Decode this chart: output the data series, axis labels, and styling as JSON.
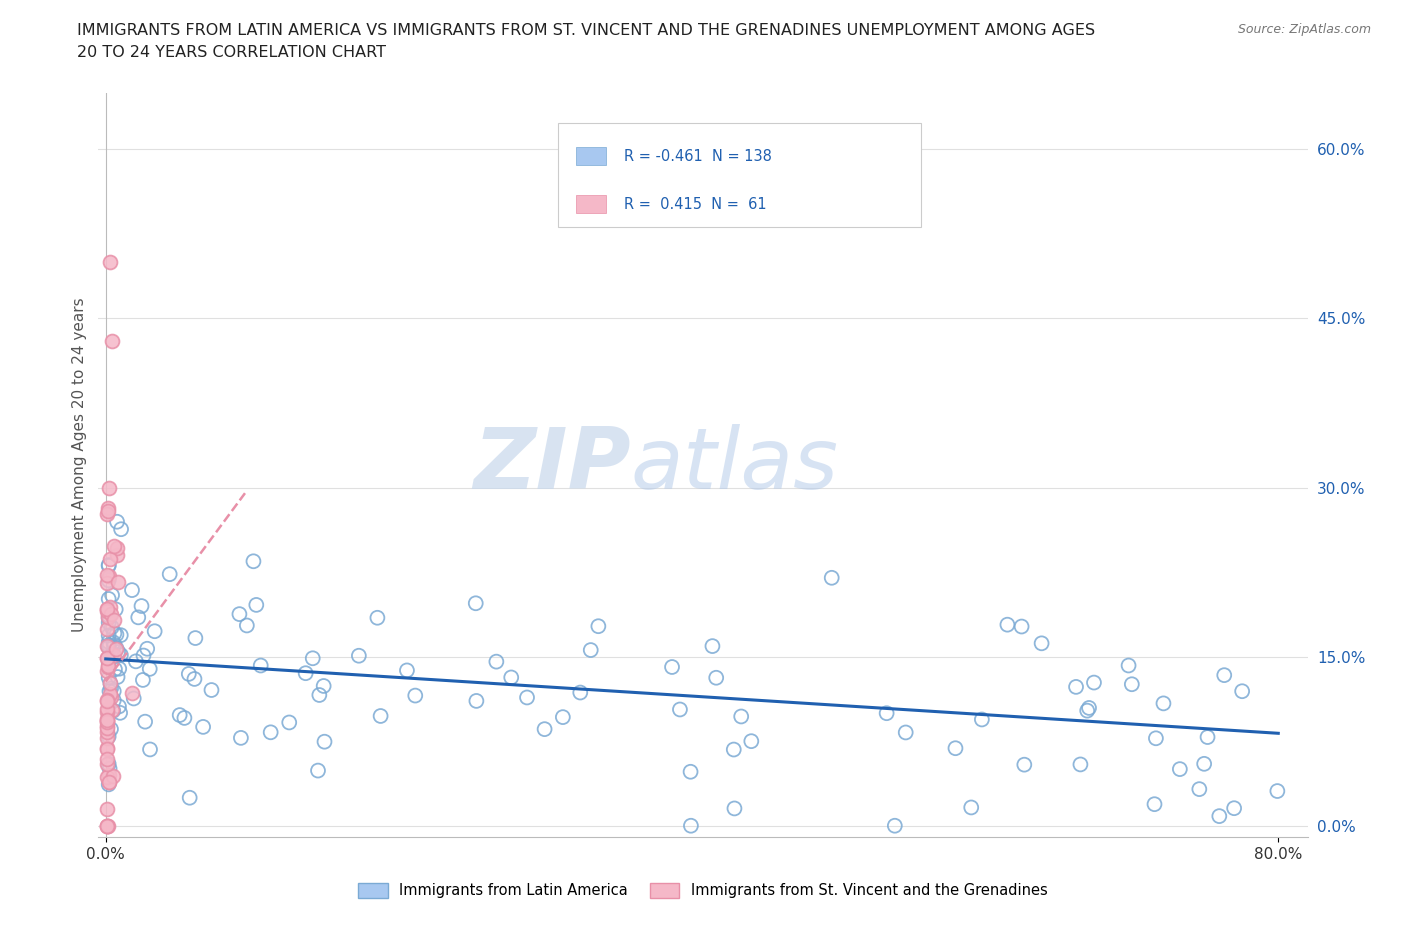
{
  "title_line1": "IMMIGRANTS FROM LATIN AMERICA VS IMMIGRANTS FROM ST. VINCENT AND THE GRENADINES UNEMPLOYMENT AMONG AGES",
  "title_line2": "20 TO 24 YEARS CORRELATION CHART",
  "source": "Source: ZipAtlas.com",
  "ylabel": "Unemployment Among Ages 20 to 24 years",
  "xlim": [
    -0.005,
    0.82
  ],
  "ylim": [
    -0.01,
    0.65
  ],
  "xtick_positions": [
    0.0,
    0.8
  ],
  "xtick_labels": [
    "0.0%",
    "80.0%"
  ],
  "ytick_positions_right": [
    0.0,
    0.15,
    0.3,
    0.45,
    0.6
  ],
  "ytick_labels_right": [
    "0.0%",
    "15.0%",
    "30.0%",
    "45.0%",
    "60.0%"
  ],
  "R_blue": -0.461,
  "N_blue": 138,
  "R_pink": 0.415,
  "N_pink": 61,
  "blue_face_color": "#a8c8f0",
  "blue_edge_color": "#7baad4",
  "pink_face_color": "#f5b8c8",
  "pink_edge_color": "#e890a8",
  "blue_line_color": "#2060b0",
  "pink_line_color": "#e07898",
  "watermark_zip": "ZIP",
  "watermark_atlas": "atlas",
  "legend_blue_label": "Immigrants from Latin America",
  "legend_pink_label": "Immigrants from St. Vincent and the Grenadines",
  "blue_line_y_start": 0.148,
  "blue_line_y_end": 0.082,
  "pink_line_x_start": 0.0,
  "pink_line_x_end": 0.095,
  "pink_line_y_start": 0.128,
  "pink_line_y_end": 0.295,
  "background_color": "#ffffff",
  "grid_color": "#e0e0e0",
  "title_color": "#222222",
  "right_tick_color": "#2060b0"
}
